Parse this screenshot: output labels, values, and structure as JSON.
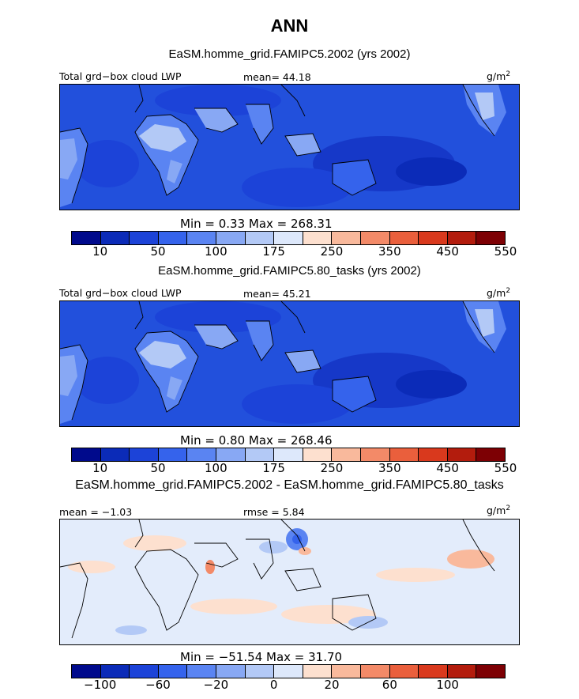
{
  "figure": {
    "title": "ANN"
  },
  "panels": [
    {
      "title": "EaSM.homme_grid.FAMIPC5.2002 (yrs 2002)",
      "left_label": "Total grd−box cloud LWP",
      "center_label": "mean=  44.18",
      "units": "g/m",
      "units_sup": "2",
      "minmax": "Min =    0.33  Max =  268.31"
    },
    {
      "title": "EaSM.homme_grid.FAMIPC5.80_tasks (yrs 2002)",
      "left_label": "Total grd−box cloud LWP",
      "center_label": "mean=  45.21",
      "units": "g/m",
      "units_sup": "2",
      "minmax": "Min =    0.80  Max =  268.46"
    },
    {
      "title": "EaSM.homme_grid.FAMIPC5.2002 - EaSM.homme_grid.FAMIPC5.80_tasks",
      "left_label": "mean =  −1.03",
      "center_label": "rmse =   5.84",
      "units": "g/m",
      "units_sup": "2",
      "minmax": "Min = −51.54  Max =   31.70"
    }
  ],
  "colorbar_abs": {
    "colors": [
      "#000a8c",
      "#0b2bb8",
      "#1c43d8",
      "#3563ec",
      "#5a84f2",
      "#88a8f4",
      "#b3c9f6",
      "#dde8fb",
      "#fde0cf",
      "#f9b99c",
      "#f38a68",
      "#ea5f3c",
      "#d9391d",
      "#b31c0d",
      "#7d0004"
    ],
    "tick_labels": [
      "10",
      "50",
      "100",
      "175",
      "250",
      "350",
      "450",
      "550"
    ]
  },
  "colorbar_diff": {
    "colors": [
      "#000a8c",
      "#0b2bb8",
      "#1c43d8",
      "#3563ec",
      "#5a84f2",
      "#88a8f4",
      "#b3c9f6",
      "#dde8fb",
      "#fde0cf",
      "#f9b99c",
      "#f38a68",
      "#ea5f3c",
      "#d9391d",
      "#b31c0d",
      "#7d0004"
    ],
    "tick_labels": [
      "−100",
      "−60",
      "−20",
      "0",
      "20",
      "60",
      "100"
    ]
  }
}
